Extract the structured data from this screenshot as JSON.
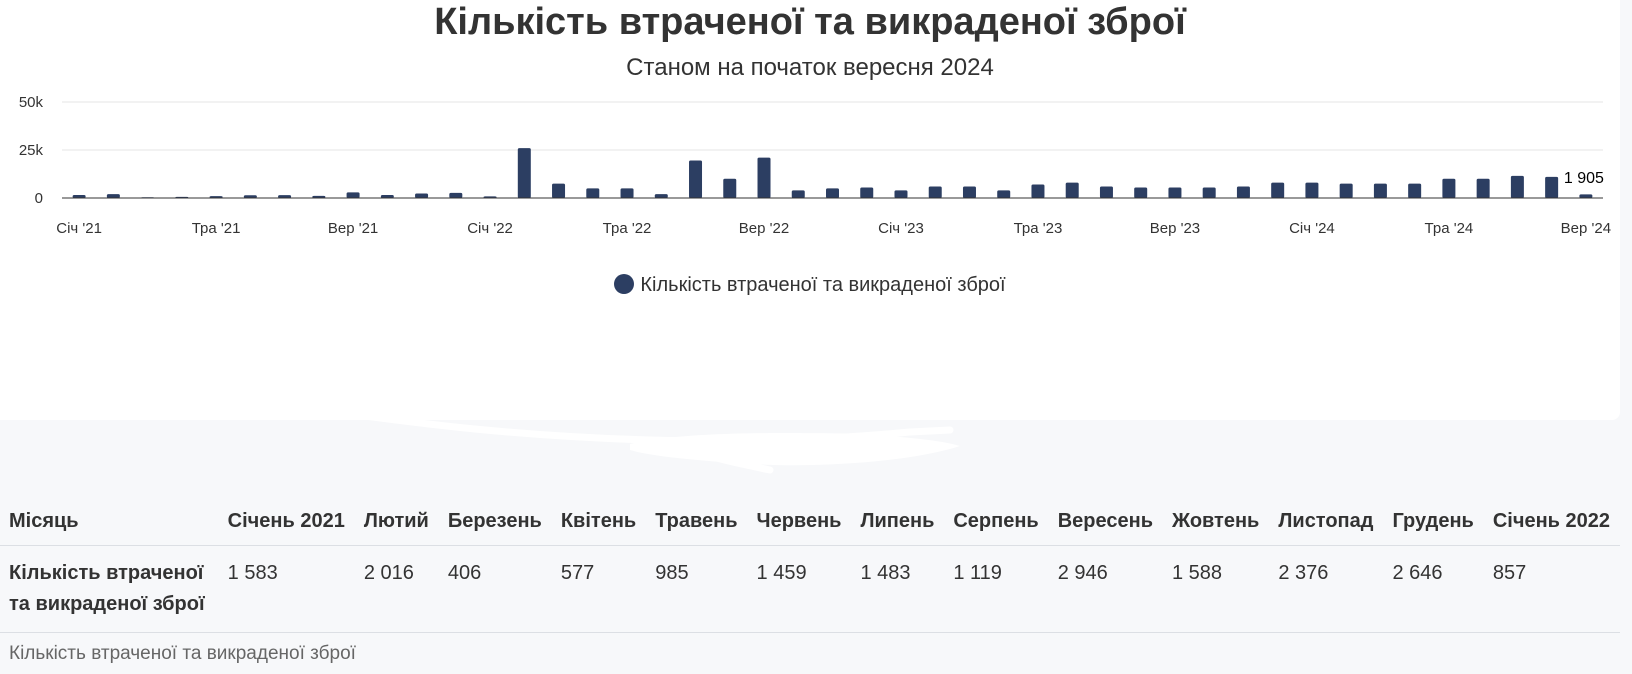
{
  "colors": {
    "bar": "#2c3e62",
    "grid": "#e6e6e6",
    "axis": "#333333",
    "text": "#333333",
    "muted": "#666666"
  },
  "chart_data": {
    "type": "bar",
    "title": "Кількість втраченої та викраденої зброї",
    "subtitle": "Станом на початок вересня 2024",
    "xlabel": "",
    "ylabel": "",
    "ylim": [
      0,
      50000
    ],
    "y_ticks": [
      "0",
      "25k",
      "50k"
    ],
    "x_tick_labels": [
      "Січ '21",
      "Тра '21",
      "Вер '21",
      "Січ '22",
      "Тра '22",
      "Вер '22",
      "Січ '23",
      "Тра '23",
      "Вер '23",
      "Січ '24",
      "Тра '24",
      "Вер '24"
    ],
    "grid": true,
    "legend_position": "bottom",
    "series": [
      {
        "name": "Кількість втраченої та викраденої зброї",
        "values": [
          1583,
          2016,
          406,
          577,
          985,
          1459,
          1483,
          1119,
          2946,
          1588,
          2376,
          2646,
          857,
          26000,
          7500,
          5000,
          5000,
          2000,
          19500,
          10000,
          21000,
          4000,
          5000,
          5500,
          4000,
          6000,
          6000,
          4000,
          7000,
          8000,
          6000,
          5500,
          5500,
          5500,
          6000,
          8000,
          8000,
          7500,
          7500,
          7500,
          10000,
          10000,
          11500,
          11000,
          1905
        ]
      }
    ],
    "data_labels": [
      {
        "index": 44,
        "text": "1 905"
      }
    ]
  },
  "table": {
    "columns": [
      "Місяць",
      "Січень 2021",
      "Лютий",
      "Березень",
      "Квітень",
      "Травень",
      "Червень",
      "Липень",
      "Серпень",
      "Вересень",
      "Жовтень",
      "Листопад",
      "Грудень",
      "Січень 2022"
    ],
    "row": {
      "label": "Кількість втраченої та викраденої зброї",
      "cells": [
        "1 583",
        "2 016",
        "406",
        "577",
        "985",
        "1 459",
        "1 483",
        "1 119",
        "2 946",
        "1 588",
        "2 376",
        "2 646",
        "857"
      ]
    },
    "caption": "Кількість втраченої та викраденої зброї"
  }
}
